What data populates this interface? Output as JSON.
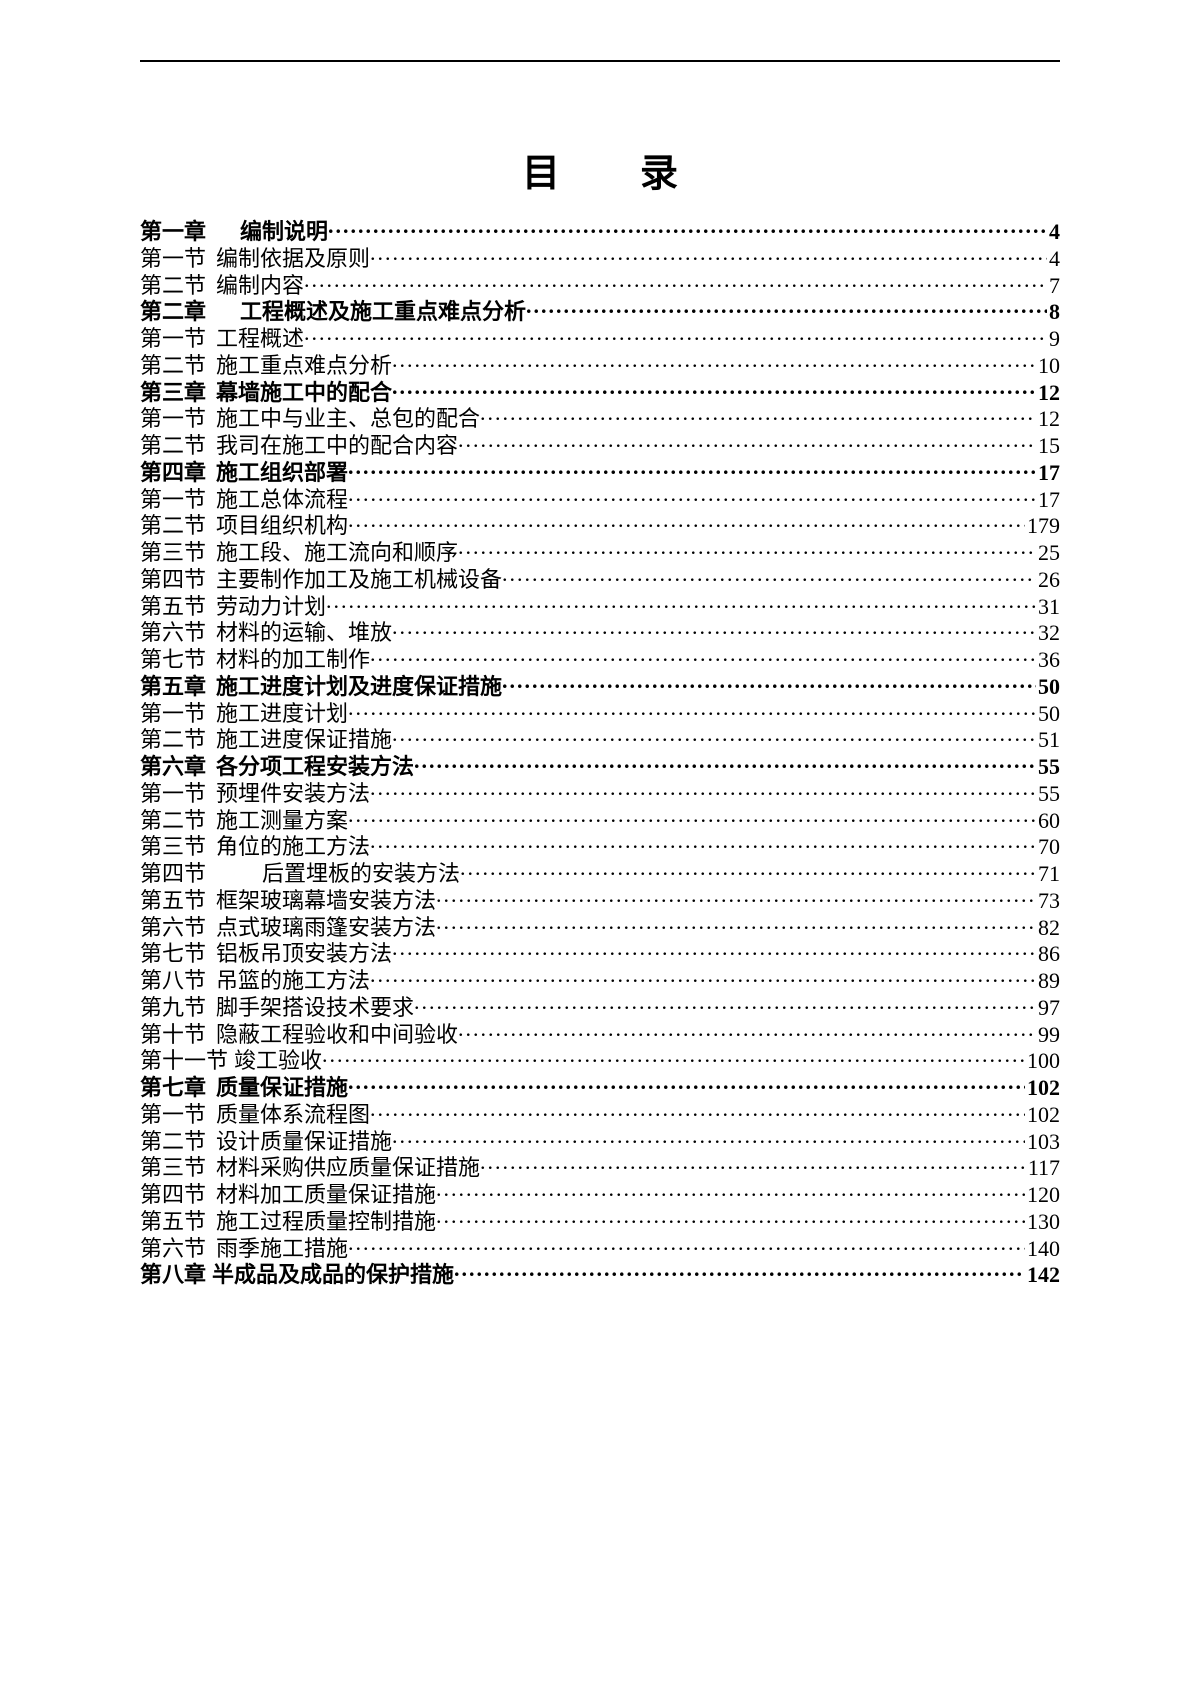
{
  "title_a": "目",
  "title_b": "录",
  "font_color": "#000000",
  "background_color": "#ffffff",
  "entries": [
    {
      "label": "第一章",
      "text": "编制说明",
      "page": "4",
      "bold": true,
      "gap": "wide"
    },
    {
      "label": "第一节",
      "text": "编制依据及原则",
      "page": "4",
      "bold": false,
      "gap": "narrow"
    },
    {
      "label": "第二节",
      "text": "编制内容",
      "page": "7",
      "bold": false,
      "gap": "narrow"
    },
    {
      "label": "第二章",
      "text": "工程概述及施工重点难点分析",
      "page": "8",
      "bold": true,
      "gap": "wide"
    },
    {
      "label": "第一节",
      "text": "工程概述",
      "page": "9",
      "bold": false,
      "gap": "narrow"
    },
    {
      "label": "第二节",
      "text": "施工重点难点分析",
      "page": "10",
      "bold": false,
      "gap": "narrow"
    },
    {
      "label": "第三章",
      "text": "幕墙施工中的配合",
      "page": "12",
      "bold": true,
      "gap": "narrow"
    },
    {
      "label": "第一节",
      "text": "施工中与业主、总包的配合",
      "page": "12",
      "bold": false,
      "gap": "narrow"
    },
    {
      "label": "第二节",
      "text": "我司在施工中的配合内容",
      "page": "15",
      "bold": false,
      "gap": "narrow"
    },
    {
      "label": "第四章",
      "text": "施工组织部署",
      "page": "17",
      "bold": true,
      "gap": "narrow"
    },
    {
      "label": "第一节",
      "text": "施工总体流程",
      "page": "17",
      "bold": false,
      "gap": "narrow"
    },
    {
      "label": "第二节",
      "text": "项目组织机构",
      "page": "179",
      "bold": false,
      "gap": "narrow"
    },
    {
      "label": "第三节",
      "text": "施工段、施工流向和顺序",
      "page": "25",
      "bold": false,
      "gap": "narrow"
    },
    {
      "label": "第四节",
      "text": "主要制作加工及施工机械设备",
      "page": "26",
      "bold": false,
      "gap": "narrow"
    },
    {
      "label": "第五节",
      "text": "劳动力计划",
      "page": "31",
      "bold": false,
      "gap": "narrow"
    },
    {
      "label": "第六节",
      "text": "材料的运输、堆放",
      "page": "32",
      "bold": false,
      "gap": "narrow"
    },
    {
      "label": "第七节",
      "text": "材料的加工制作",
      "page": "36",
      "bold": false,
      "gap": "narrow"
    },
    {
      "label": "第五章",
      "text": "施工进度计划及进度保证措施",
      "page": "50",
      "bold": true,
      "gap": "narrow"
    },
    {
      "label": "第一节",
      "text": "施工进度计划",
      "page": "50",
      "bold": false,
      "gap": "narrow"
    },
    {
      "label": "第二节",
      "text": "施工进度保证措施",
      "page": "51",
      "bold": false,
      "gap": "narrow"
    },
    {
      "label": "第六章",
      "text": "各分项工程安装方法",
      "page": "55",
      "bold": true,
      "gap": "narrow"
    },
    {
      "label": "第一节",
      "text": "预埋件安装方法",
      "page": "55",
      "bold": false,
      "gap": "narrow"
    },
    {
      "label": "第二节",
      "text": "施工测量方案",
      "page": "60",
      "bold": false,
      "gap": "narrow"
    },
    {
      "label": "第三节",
      "text": "角位的施工方法",
      "page": "70",
      "bold": false,
      "gap": "narrow"
    },
    {
      "label": "第四节",
      "text": "　后置埋板的安装方法",
      "page": "71",
      "bold": false,
      "gap": "wide"
    },
    {
      "label": "第五节",
      "text": "框架玻璃幕墙安装方法",
      "page": "73",
      "bold": false,
      "gap": "narrow"
    },
    {
      "label": "第六节",
      "text": "点式玻璃雨篷安装方法",
      "page": "82",
      "bold": false,
      "gap": "narrow"
    },
    {
      "label": "第七节",
      "text": "铝板吊顶安装方法",
      "page": "86",
      "bold": false,
      "gap": "narrow"
    },
    {
      "label": "第八节",
      "text": "吊篮的施工方法",
      "page": "89",
      "bold": false,
      "gap": "narrow"
    },
    {
      "label": "第九节",
      "text": "脚手架搭设技术要求",
      "page": "97",
      "bold": false,
      "gap": "narrow"
    },
    {
      "label": "第十节",
      "text": "隐蔽工程验收和中间验收",
      "page": "99",
      "bold": false,
      "gap": "narrow"
    },
    {
      "label": "第十一节",
      "text": "竣工验收",
      "page": "100",
      "bold": false,
      "gap": "tight"
    },
    {
      "label": "第七章",
      "text": "质量保证措施",
      "page": "102",
      "bold": true,
      "gap": "narrow"
    },
    {
      "label": "第一节",
      "text": "质量体系流程图",
      "page": "102",
      "bold": false,
      "gap": "narrow"
    },
    {
      "label": "第二节",
      "text": "设计质量保证措施",
      "page": "103",
      "bold": false,
      "gap": "narrow"
    },
    {
      "label": "第三节",
      "text": "材料采购供应质量保证措施",
      "page": "117",
      "bold": false,
      "gap": "narrow"
    },
    {
      "label": "第四节",
      "text": "材料加工质量保证措施",
      "page": "120",
      "bold": false,
      "gap": "narrow"
    },
    {
      "label": "第五节",
      "text": "施工过程质量控制措施",
      "page": "130",
      "bold": false,
      "gap": "narrow"
    },
    {
      "label": "第六节",
      "text": "雨季施工措施",
      "page": "140",
      "bold": false,
      "gap": "narrow"
    },
    {
      "label": "第八章",
      "text": "半成品及成品的保护措施",
      "page": "142",
      "bold": true,
      "gap": "tight"
    }
  ]
}
